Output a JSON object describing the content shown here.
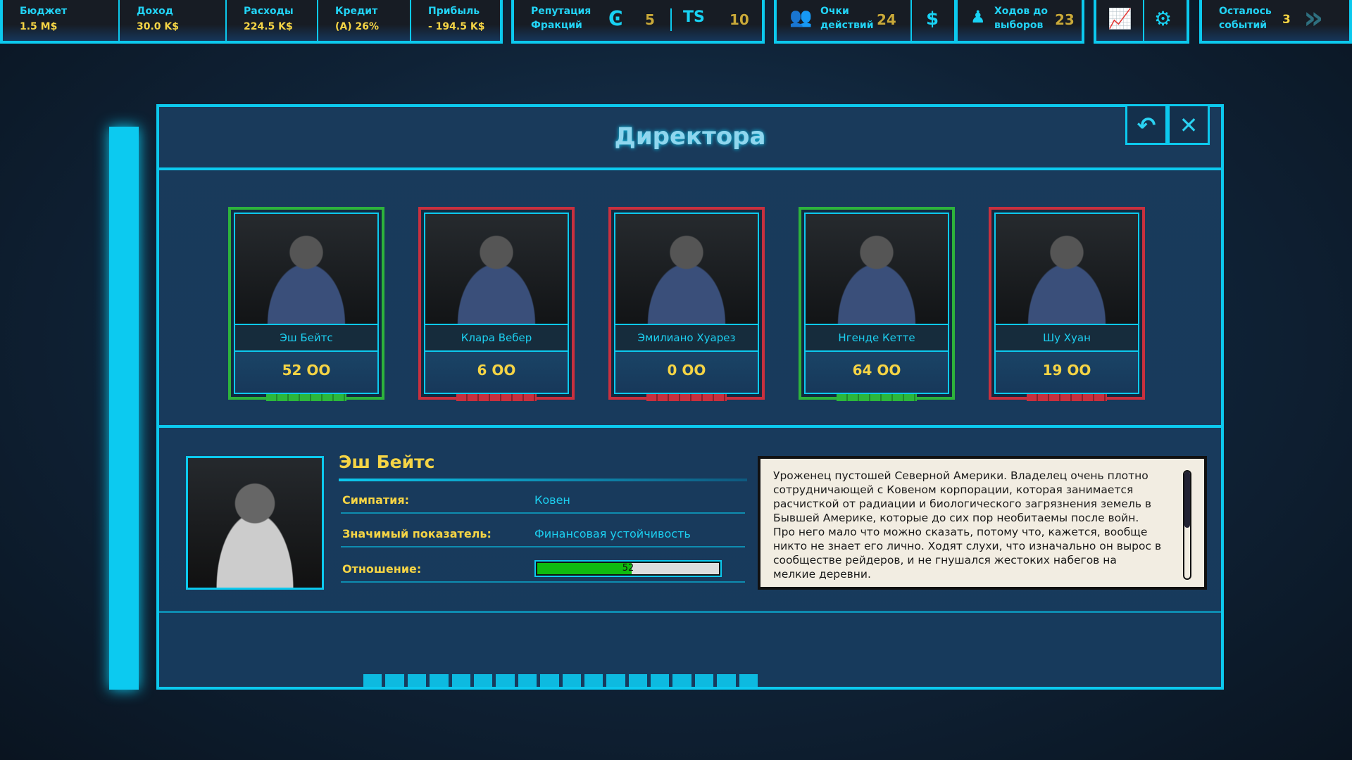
{
  "topbar": {
    "stats": [
      {
        "label": "Бюджет",
        "value": "1.5 M$"
      },
      {
        "label": "Доход",
        "value": "30.0 K$"
      },
      {
        "label": "Расходы",
        "value": "224.5 K$"
      },
      {
        "label": "Кредит",
        "value": "(A) 26%"
      },
      {
        "label": "Прибыль",
        "value": "- 194.5 K$"
      }
    ],
    "reputation": {
      "label1": "Репутация",
      "label2": "Фракций",
      "faction1": "5",
      "faction2": "10"
    },
    "action_points": {
      "label1": "Очки",
      "label2": "действий",
      "value": "24",
      "dollar": "$"
    },
    "elections": {
      "label1": "Ходов до",
      "label2": "выборов",
      "value": "23"
    },
    "events": {
      "label1": "Осталось",
      "label2": "событий",
      "value": "3",
      "next": "»"
    }
  },
  "dialog": {
    "title": "Директора",
    "back": "↶",
    "close": "✕"
  },
  "cards": [
    {
      "name": "Эш Бейтс",
      "value": "52 OO",
      "status": "green"
    },
    {
      "name": "Клара Вебер",
      "value": "6 OO",
      "status": "red"
    },
    {
      "name": "Эмилиано Хуарез",
      "value": "0 OO",
      "status": "red"
    },
    {
      "name": "Нгенде Кетте",
      "value": "64 OO",
      "status": "green"
    },
    {
      "name": "Шу Хуан",
      "value": "19 OO",
      "status": "red"
    }
  ],
  "detail": {
    "name": "Эш Бейтс",
    "sympathy_label": "Симпатия:",
    "sympathy": "Ковен",
    "indicator_label": "Значимый показатель:",
    "indicator": "Финансовая устойчивость",
    "attitude_label": "Отношение:",
    "attitude": "52",
    "attitude_percent": 52,
    "description": "Уроженец пустошей Северной Америки. Владелец очень плотно сотрудничающей с Ковеном корпорации, которая занимается расчисткой от радиации и биологического загрязнения земель в Бывшей Америке, которые до сих пор необитаемы после войн. Про него мало что можно сказать, потому что, кажется, вообще никто не знает его лично. Ходят слухи, что изначально он вырос в сообществе рейдеров, и не гнушался жестоких набегов на мелкие деревни."
  },
  "colors": {
    "accent": "#0cc9ee",
    "gold": "#f5d445",
    "positive": "#2db33b",
    "negative": "#c8303e"
  }
}
